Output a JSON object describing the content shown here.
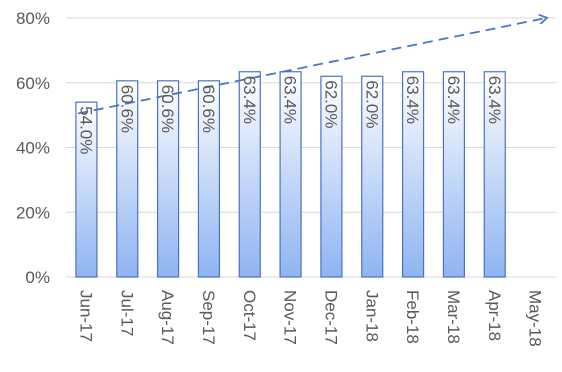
{
  "chart_data": {
    "type": "bar",
    "title": "",
    "xlabel": "",
    "ylabel": "",
    "categories": [
      "Jun-17",
      "Jul-17",
      "Aug-17",
      "Sep-17",
      "Oct-17",
      "Nov-17",
      "Dec-17",
      "Jan-18",
      "Feb-18",
      "Mar-18",
      "Apr-18",
      "May-18"
    ],
    "series": [
      {
        "values": [
          54.0,
          60.6,
          60.6,
          60.6,
          63.4,
          63.4,
          62.0,
          62.0,
          63.4,
          63.4,
          63.4,
          null
        ],
        "data_labels": [
          "54.0%",
          "60.6%",
          "60.6%",
          "60.6%",
          "63.4%",
          "63.4%",
          "62.0%",
          "62.0%",
          "63.4%",
          "63.4%",
          "63.4%",
          ""
        ]
      }
    ],
    "ylim": [
      0,
      80
    ],
    "yticks": [
      0,
      20,
      40,
      60,
      80
    ],
    "ytick_labels": [
      "0%",
      "20%",
      "40%",
      "60%",
      "80%"
    ],
    "grid": true,
    "legend": "none",
    "trendline": {
      "style": "dashed",
      "arrow": true,
      "start_value": 50.5,
      "end_value": 80.0
    },
    "colors": {
      "bar_fill_top": "#ffffff",
      "bar_fill_bottom": "#8fb4f2",
      "bar_stroke": "#4a72c4",
      "trendline": "#4a78c0",
      "grid": "#d9d9d9",
      "axis_text": "#595959",
      "label_text": "#595959"
    }
  }
}
